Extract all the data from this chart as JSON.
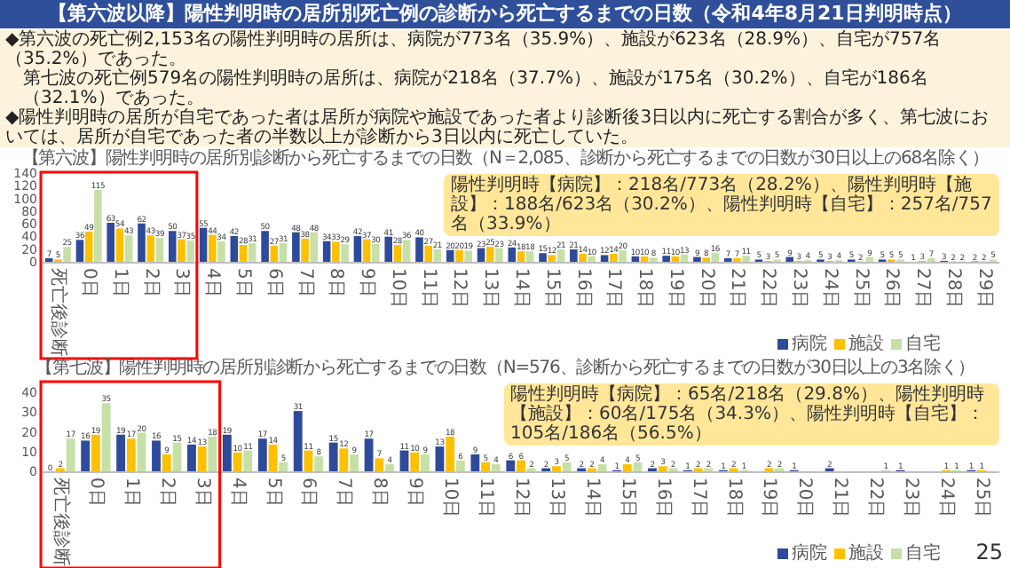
{
  "chart_data": [
    {
      "type": "bar",
      "title": "【第六波以降】陽性判明時の居所別死亡例の診断から死亡するまでの日数（令和4年8月21日判明時点）",
      "subtitle": "【第六波】陽性判明時の居所別診断から死亡するまでの日数（N＝2,085、診断から死亡するまでの日数が30日以上の68名除く）",
      "annotations": [
        "陽性判明時【病院】：218名/773名（28.2%）、陽性判明時【施設】：188名/623名（30.2%）、陽性判明時【自宅】：257名/757名（33.9%）",
        "◆第六波の死亡例2,153名の陽性判明時の居所は、病院が773名（35.9%）、施設が623名（28.9%）、自宅が757名（35.2%）であった。",
        "第七波の死亡例579名の陽性判明時の居所は、病院が218名（37.7%）、施設が175名（30.2%）、自宅が186名（32.1%）であった。",
        "◆陽性判明時の居所が自宅であった者は居所が病院や施設であった者より診断後3日以内に死亡する割合が多く、第七波においては、居所が自宅であった者の半数以上が診断から3日以内に死亡していた。"
      ],
      "categories": [
        "死亡後診断",
        "0日",
        "1日",
        "2日",
        "3日",
        "4日",
        "5日",
        "6日",
        "7日",
        "8日",
        "9日",
        "10日",
        "11日",
        "12日",
        "13日",
        "14日",
        "15日",
        "16日",
        "17日",
        "18日",
        "19日",
        "20日",
        "21日",
        "22日",
        "23日",
        "24日",
        "25日",
        "26日",
        "27日",
        "28日",
        "29日"
      ],
      "series": [
        {
          "name": "病院",
          "color": "#2e4a9a",
          "values": [
            7,
            36,
            63,
            62,
            50,
            55,
            42,
            50,
            48,
            34,
            42,
            41,
            40,
            20,
            23,
            24,
            15,
            21,
            12,
            10,
            11,
            9,
            7,
            5,
            9,
            5,
            5,
            5,
            1,
            3,
            2
          ]
        },
        {
          "name": "施設",
          "color": "#ffc000",
          "values": [
            5,
            49,
            54,
            43,
            37,
            44,
            28,
            27,
            38,
            33,
            37,
            28,
            27,
            20,
            25,
            18,
            12,
            14,
            14,
            10,
            10,
            8,
            7,
            3,
            3,
            3,
            2,
            5,
            3,
            2,
            2
          ]
        },
        {
          "name": "自宅",
          "color": "#c6e0a8",
          "values": [
            25,
            115,
            43,
            39,
            35,
            34,
            31,
            31,
            48,
            29,
            30,
            36,
            21,
            19,
            23,
            18,
            21,
            10,
            20,
            8,
            13,
            16,
            11,
            5,
            4,
            4,
            9,
            5,
            7,
            2,
            5
          ]
        }
      ],
      "ylim": [
        0,
        140
      ],
      "yticks": [
        0,
        20,
        40,
        60,
        80,
        100,
        120,
        140
      ],
      "data_labels": true,
      "legend": "bottom right"
    },
    {
      "type": "bar",
      "subtitle": "【第七波】陽性判明時の居所別診断から死亡するまでの日数（N=576、診断から死亡するまでの日数が30日以上の3名除く）",
      "annotations": [
        "陽性判明時【病院】：65名/218名（29.8%）、陽性判明時【施設】：60名/175名（34.3%）、陽性判明時【自宅】：105名/186名（56.5%）",
        "25"
      ],
      "categories": [
        "死亡後診断",
        "0日",
        "1日",
        "2日",
        "3日",
        "4日",
        "5日",
        "6日",
        "7日",
        "8日",
        "9日",
        "10日",
        "11日",
        "12日",
        "13日",
        "14日",
        "15日",
        "16日",
        "17日",
        "18日",
        "19日",
        "20日",
        "21日",
        "22日",
        "23日",
        "24日",
        "25日"
      ],
      "series": [
        {
          "name": "病院",
          "color": "#2e4a9a",
          "values": [
            0,
            16,
            19,
            16,
            14,
            19,
            17,
            31,
            15,
            17,
            11,
            13,
            9,
            6,
            2,
            2,
            1,
            2,
            1,
            1,
            null,
            1,
            2,
            null,
            1,
            null,
            1
          ]
        },
        {
          "name": "施設",
          "color": "#ffc000",
          "values": [
            2,
            19,
            17,
            9,
            13,
            10,
            14,
            11,
            12,
            7,
            10,
            18,
            5,
            6,
            3,
            2,
            4,
            3,
            2,
            2,
            2,
            null,
            null,
            null,
            null,
            1,
            1
          ]
        },
        {
          "name": "自宅",
          "color": "#c6e0a8",
          "values": [
            17,
            35,
            20,
            15,
            18,
            11,
            5,
            8,
            9,
            4,
            9,
            6,
            4,
            2,
            5,
            4,
            5,
            2,
            2,
            1,
            2,
            null,
            null,
            1,
            null,
            1,
            null
          ]
        }
      ],
      "ylim": [
        0,
        45
      ],
      "yticks": [
        0,
        10,
        20,
        30,
        40
      ],
      "data_labels": true,
      "legend": "bottom right"
    }
  ]
}
